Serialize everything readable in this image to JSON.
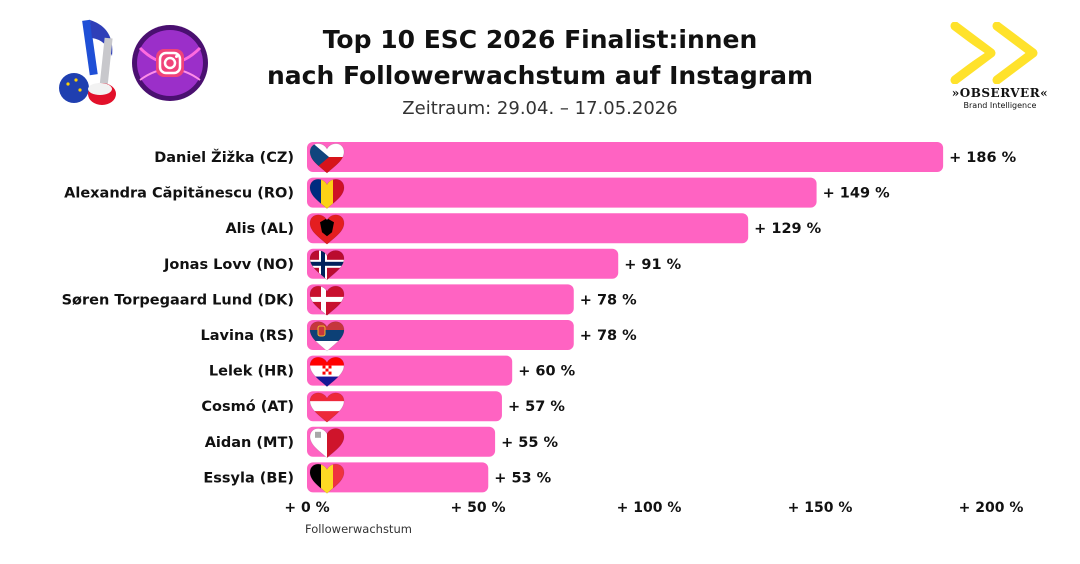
{
  "header": {
    "title_line1": "Top 10 ESC 2026 Finalist:innen",
    "title_line2": "nach Followerwachstum auf Instagram",
    "subtitle": "Zeitraum: 29.04. – 17.05.2026"
  },
  "branding": {
    "observer_name": "»OBSERVER«",
    "observer_sub": "Brand Intelligence",
    "left_icons": [
      "music-note-icon",
      "instagram-icon"
    ]
  },
  "colors": {
    "bar": "#ff63c2",
    "logo_yellow": "#ffe22b",
    "instagram_bg": "#8a2be2"
  },
  "chart_data": {
    "type": "bar",
    "orientation": "horizontal",
    "categories": [
      "Daniel Žižka (CZ)",
      "Alexandra Căpitănescu (RO)",
      "Alis (AL)",
      "Jonas Lovv (NO)",
      "Søren Torpegaard Lund (DK)",
      "Lavina (RS)",
      "Lelek (HR)",
      "Cosmó (AT)",
      "Aidan (MT)",
      "Essyla (BE)"
    ],
    "flags": [
      "cz",
      "ro",
      "al",
      "no",
      "dk",
      "rs",
      "hr",
      "at",
      "mt",
      "be"
    ],
    "values": [
      186,
      149,
      129,
      91,
      78,
      78,
      60,
      57,
      55,
      53
    ],
    "data_labels": [
      "+ 186 %",
      "+ 149 %",
      "+ 129 %",
      "+ 91 %",
      "+ 78 %",
      "+ 78 %",
      "+ 60 %",
      "+ 57 %",
      "+ 55 %",
      "+ 53 %"
    ],
    "xlim": [
      0,
      200
    ],
    "xticks": [
      0,
      50,
      100,
      150,
      200
    ],
    "xtick_labels": [
      "+ 0 %",
      "+ 50 %",
      "+ 100 %",
      "+ 150 %",
      "+ 200 %"
    ],
    "xlabel": "Followerwachstum",
    "grid": false
  }
}
